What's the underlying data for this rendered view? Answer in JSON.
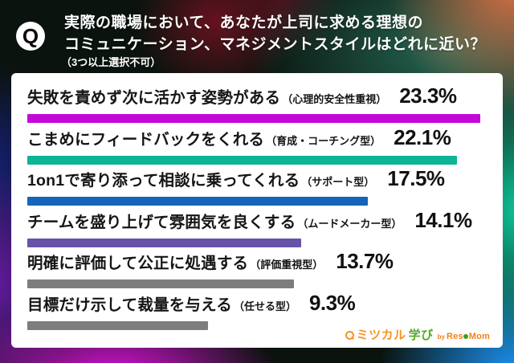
{
  "header": {
    "badge": "Q",
    "line1": "実際の職場において、あなたが上司に求める理想の",
    "line2": "コミュニケーション、マネジメントスタイルはどれに近い？",
    "note": "（3つ以上選択不可）"
  },
  "chart_data": {
    "type": "bar",
    "orientation": "horizontal",
    "unit": "%",
    "xlim": [
      0,
      25
    ],
    "grid": false,
    "items": [
      {
        "label": "失敗を責めず次に活かす姿勢がある",
        "category": "（心理的安全性重視）",
        "value": 23.3,
        "display": "23.3%",
        "color": "#c408d8"
      },
      {
        "label": "こまめにフィードバックをくれる",
        "category": "（育成・コーチング型）",
        "value": 22.1,
        "display": "22.1%",
        "color": "#0db495"
      },
      {
        "label": "1on1で寄り添って相談に乗ってくれる",
        "category": "（サポート型）",
        "value": 17.5,
        "display": "17.5%",
        "color": "#1565b8"
      },
      {
        "label": "チームを盛り上げて雰囲気を良くする",
        "category": "（ムードメーカー型）",
        "value": 14.1,
        "display": "14.1%",
        "color": "#6852a8"
      },
      {
        "label": "明確に評価して公正に処遇する",
        "category": "（評価重視型）",
        "value": 13.7,
        "display": "13.7%",
        "color": "#7d7d7d"
      },
      {
        "label": "目標だけ示して裁量を与える",
        "category": "（任せる型）",
        "value": 9.3,
        "display": "9.3%",
        "color": "#7d7d7d"
      }
    ]
  },
  "logo": {
    "brand_jp_1": "ミツカル",
    "brand_jp_2": "学び",
    "by": "by",
    "brand_en_1": "Res",
    "brand_en_2": "Mom",
    "accent_orange": "#f7941d",
    "accent_green": "#56a829"
  }
}
